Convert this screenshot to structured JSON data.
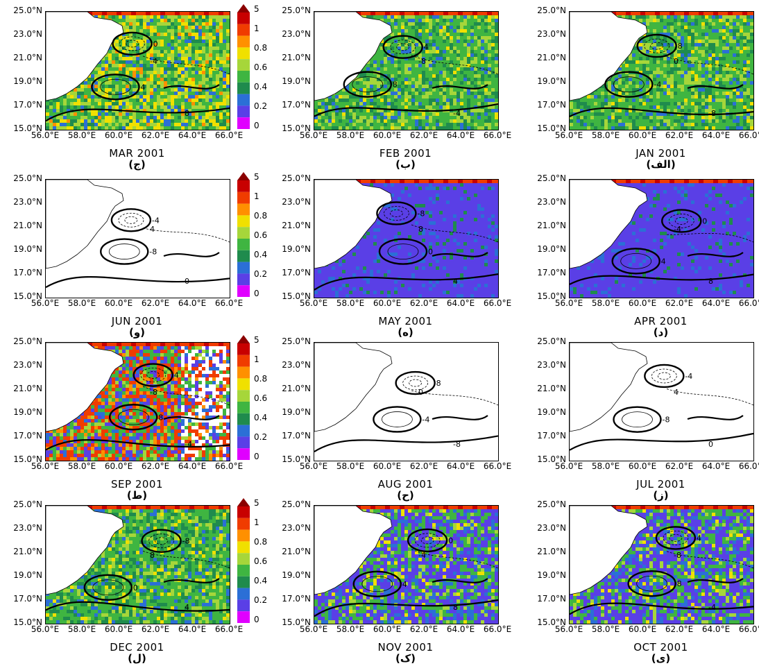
{
  "x_ticks": [
    "56.0°E",
    "58.0°E",
    "60.0°E",
    "62.0°E",
    "64.0°E",
    "66.0°E"
  ],
  "y_ticks": [
    "25.0°N",
    "23.0°N",
    "21.0°N",
    "19.0°N",
    "17.0°N",
    "15.0°N"
  ],
  "colorbar": {
    "labels": [
      "5",
      "1",
      "0.8",
      "0.6",
      "0.4",
      "0.2",
      "0"
    ],
    "colors": [
      "#c80000",
      "#f03c00",
      "#ff9000",
      "#f0e000",
      "#a6d63a",
      "#3fb541",
      "#1f8b4d",
      "#2b6fd6",
      "#5a3fe6",
      "#e000ff"
    ]
  },
  "panels": [
    {
      "caption": "MAR 2001",
      "letter": "(ج)",
      "style": "mixed"
    },
    {
      "caption": "FEB 2001",
      "letter": "(ب)",
      "style": "green"
    },
    {
      "caption": "JAN 2001",
      "letter": "(الف)",
      "style": "green"
    },
    {
      "caption": "JUN 2001",
      "letter": "(و)",
      "style": "empty"
    },
    {
      "caption": "MAY 2001",
      "letter": "(ه)",
      "style": "blue"
    },
    {
      "caption": "APR 2001",
      "letter": "(د)",
      "style": "blue"
    },
    {
      "caption": "SEP 2001",
      "letter": "(ط)",
      "style": "hot"
    },
    {
      "caption": "AUG 2001",
      "letter": "(ح)",
      "style": "empty"
    },
    {
      "caption": "JUL 2001",
      "letter": "(ز)",
      "style": "empty"
    },
    {
      "caption": "DEC 2001",
      "letter": "(ل)",
      "style": "green"
    },
    {
      "caption": "NOV 2001",
      "letter": "(ک)",
      "style": "greenblue"
    },
    {
      "caption": "OCT 2001",
      "letter": "(ی)",
      "style": "greenblue"
    }
  ],
  "contour_labels": [
    "0",
    "4",
    "8",
    "-4",
    "-8"
  ]
}
